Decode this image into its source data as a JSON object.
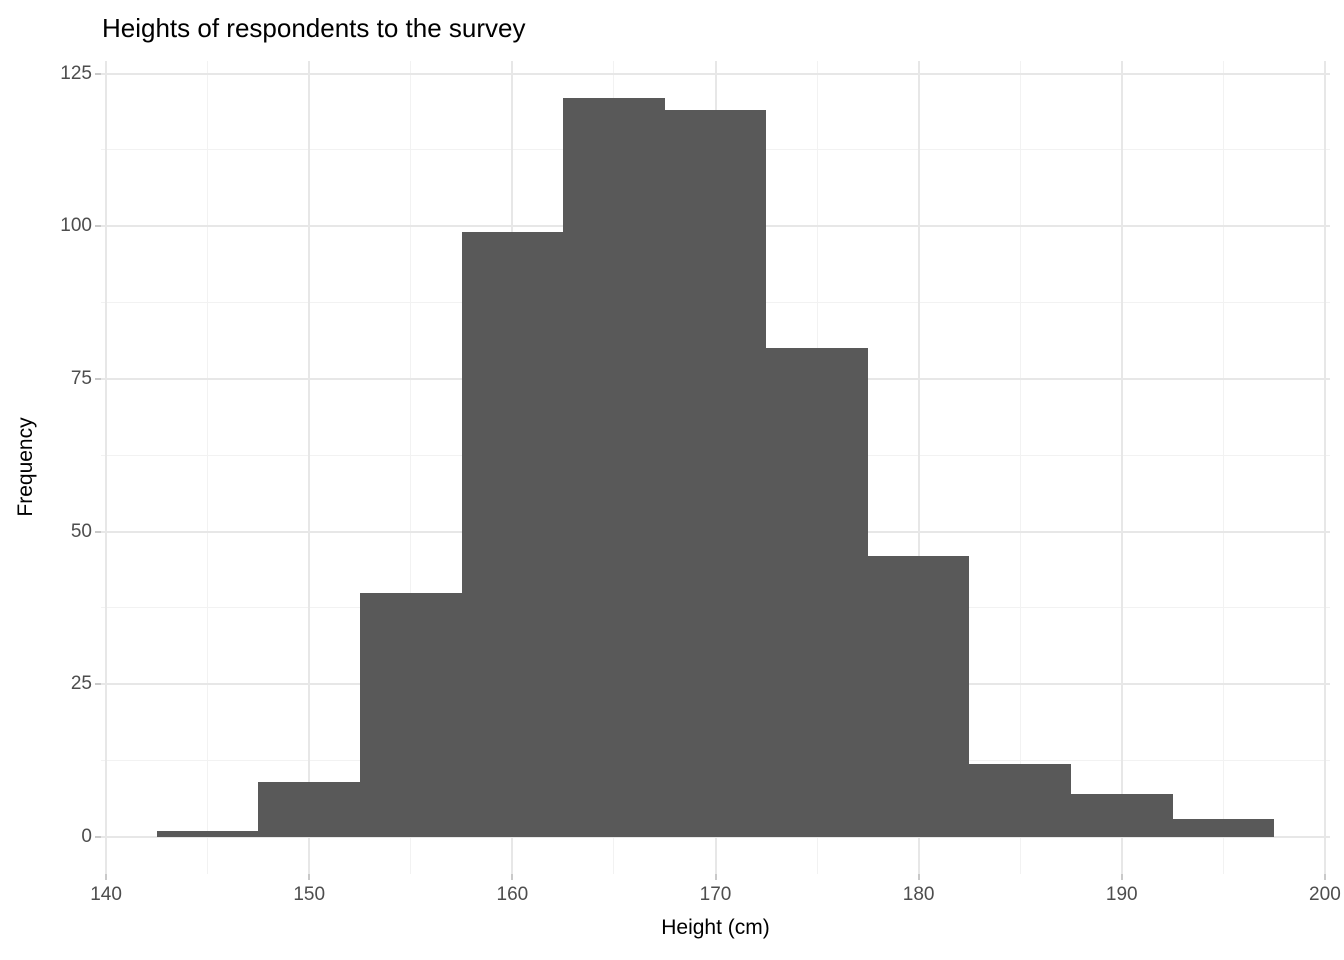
{
  "chart": {
    "title": "Heights of respondents to the survey",
    "xlabel": "Height (cm)",
    "ylabel": "Frequency"
  },
  "chart_data": {
    "type": "bar",
    "subtype": "histogram",
    "title": "Heights of respondents to the survey",
    "xlabel": "Height (cm)",
    "ylabel": "Frequency",
    "bin_width": 5,
    "bins": [
      {
        "start": 142.5,
        "end": 147.5,
        "center": 145,
        "count": 1
      },
      {
        "start": 147.5,
        "end": 152.5,
        "center": 150,
        "count": 9
      },
      {
        "start": 152.5,
        "end": 157.5,
        "center": 155,
        "count": 40
      },
      {
        "start": 157.5,
        "end": 162.5,
        "center": 160,
        "count": 99
      },
      {
        "start": 162.5,
        "end": 167.5,
        "center": 165,
        "count": 121
      },
      {
        "start": 167.5,
        "end": 172.5,
        "center": 170,
        "count": 119
      },
      {
        "start": 172.5,
        "end": 177.5,
        "center": 175,
        "count": 80
      },
      {
        "start": 177.5,
        "end": 182.5,
        "center": 180,
        "count": 46
      },
      {
        "start": 182.5,
        "end": 187.5,
        "center": 185,
        "count": 12
      },
      {
        "start": 187.5,
        "end": 192.5,
        "center": 190,
        "count": 7
      },
      {
        "start": 192.5,
        "end": 197.5,
        "center": 195,
        "count": 3
      }
    ],
    "x_ticks": [
      140,
      150,
      160,
      170,
      180,
      190,
      200
    ],
    "x_minor_gridlines": [
      145,
      155,
      165,
      175,
      185,
      195
    ],
    "y_ticks": [
      0,
      25,
      50,
      75,
      100,
      125
    ],
    "y_minor_gridlines": [
      12.5,
      37.5,
      62.5,
      87.5,
      112.5
    ],
    "x_domain": [
      139.75,
      200.25
    ],
    "y_domain": [
      -6.05,
      127.05
    ],
    "grid": true,
    "legend": "none",
    "colors": {
      "bar_fill": "#595959",
      "grid_major": "#e7e7e7",
      "grid_minor": "#f2f2f2",
      "tick_mark": "#c9c9c9",
      "axis_text": "#4d4d4d",
      "title_text": "#000000",
      "background": "#ffffff"
    }
  }
}
